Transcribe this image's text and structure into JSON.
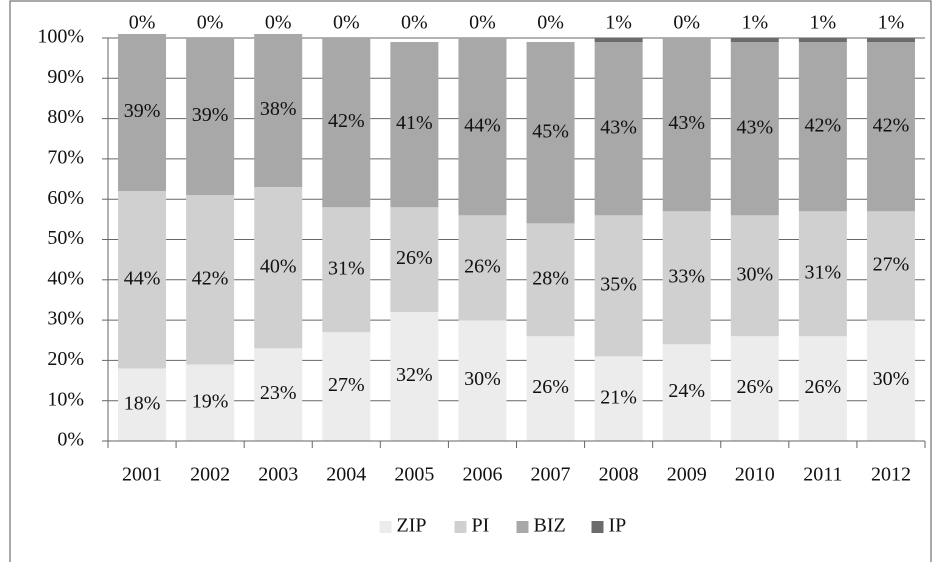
{
  "chart_data": {
    "type": "stacked_bar",
    "categories": [
      "2001",
      "2002",
      "2003",
      "2004",
      "2005",
      "2006",
      "2007",
      "2008",
      "2009",
      "2010",
      "2011",
      "2012"
    ],
    "series": [
      {
        "name": "ZIP",
        "color": "#ececec",
        "values": [
          18,
          19,
          23,
          27,
          32,
          30,
          26,
          21,
          24,
          26,
          26,
          30
        ],
        "value_labels": [
          "18%",
          "19%",
          "23%",
          "27%",
          "32%",
          "30%",
          "26%",
          "21%",
          "24%",
          "26%",
          "26%",
          "30%"
        ]
      },
      {
        "name": "PI",
        "color": "#d0d0d0",
        "values": [
          44,
          42,
          40,
          31,
          26,
          26,
          28,
          35,
          33,
          30,
          31,
          27
        ],
        "value_labels": [
          "44%",
          "42%",
          "40%",
          "31%",
          "26%",
          "26%",
          "28%",
          "35%",
          "33%",
          "30%",
          "31%",
          "27%"
        ]
      },
      {
        "name": "BIZ",
        "color": "#a8a8a8",
        "values": [
          39,
          39,
          38,
          42,
          41,
          44,
          45,
          43,
          43,
          43,
          42,
          42
        ],
        "value_labels": [
          "39%",
          "39%",
          "38%",
          "42%",
          "41%",
          "44%",
          "45%",
          "43%",
          "43%",
          "43%",
          "42%",
          "42%"
        ]
      },
      {
        "name": "IP",
        "color": "#6b6b6b",
        "values": [
          0,
          0,
          0,
          0,
          0,
          0,
          0,
          1,
          0,
          1,
          1,
          1
        ],
        "value_labels": [
          "0%",
          "0%",
          "0%",
          "0%",
          "0%",
          "0%",
          "0%",
          "1%",
          "0%",
          "1%",
          "1%",
          "1%"
        ]
      }
    ],
    "ylim": [
      0,
      100
    ],
    "yticks": [
      {
        "value": 0,
        "label": "0%"
      },
      {
        "value": 10,
        "label": "10%"
      },
      {
        "value": 20,
        "label": "20%"
      },
      {
        "value": 30,
        "label": "30%"
      },
      {
        "value": 40,
        "label": "40%"
      },
      {
        "value": 50,
        "label": "50%"
      },
      {
        "value": 60,
        "label": "60%"
      },
      {
        "value": 70,
        "label": "70%"
      },
      {
        "value": 80,
        "label": "80%"
      },
      {
        "value": 90,
        "label": "90%"
      },
      {
        "value": 100,
        "label": "100%"
      }
    ],
    "grid": true,
    "legend": "bottom"
  }
}
